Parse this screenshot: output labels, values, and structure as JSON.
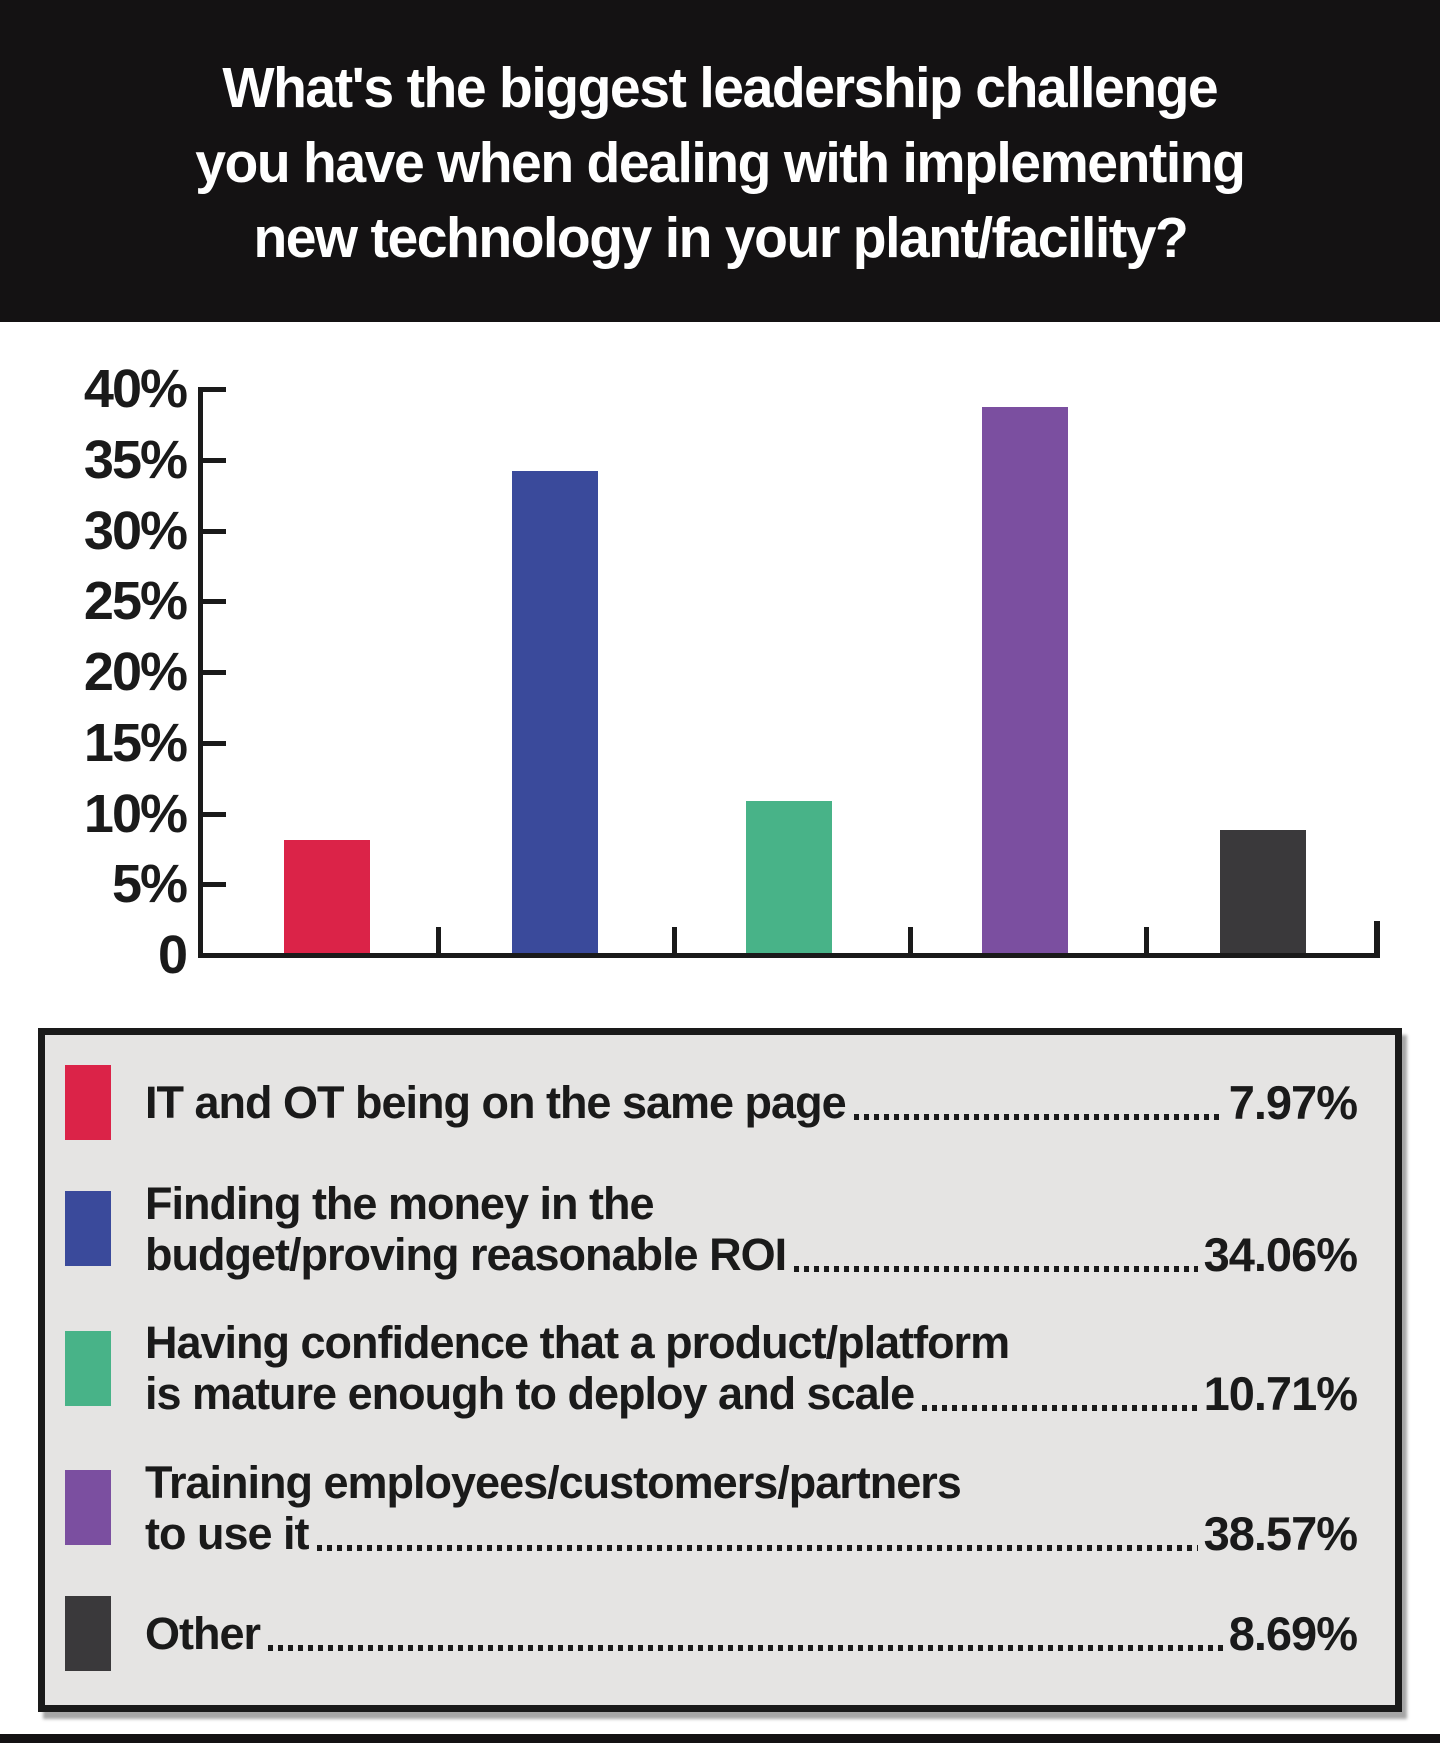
{
  "header": {
    "lines": [
      "What's the biggest leadership challenge",
      "you have when dealing with implementing",
      "new technology in your plant/facility?"
    ]
  },
  "chart_data": {
    "type": "bar",
    "title": "What's the biggest leadership challenge you have when dealing with implementing new technology in your plant/facility?",
    "categories": [
      "IT and OT being on the same page",
      "Finding the money in the budget/proving reasonable ROI",
      "Having confidence that a product/platform is mature enough to deploy and scale",
      "Training employees/customers/partners to use it",
      "Other"
    ],
    "values": [
      7.97,
      34.06,
      10.71,
      38.57,
      8.69
    ],
    "bar_colors": [
      "#db2348",
      "#3a4a9b",
      "#48b388",
      "#7b4fa0",
      "#3a393b"
    ],
    "xlabel": "",
    "ylabel": "",
    "ylim": [
      0,
      40
    ],
    "ytick_values": [
      40,
      35,
      30,
      25,
      20,
      15,
      10,
      5,
      0
    ],
    "ytick_labels": [
      "40%",
      "35%",
      "30%",
      "25%",
      "20%",
      "15%",
      "10%",
      "5%",
      "0"
    ],
    "grid": false,
    "legend_position": "bottom"
  },
  "legend": {
    "items": [
      {
        "color": "#db2348",
        "lines": [
          "IT and OT being on the same page"
        ],
        "value": "7.97%"
      },
      {
        "color": "#3a4a9b",
        "lines": [
          "Finding the money in the",
          "budget/proving reasonable ROI"
        ],
        "value": "34.06%"
      },
      {
        "color": "#48b388",
        "lines": [
          "Having confidence that a product/platform",
          "is mature enough to deploy and scale"
        ],
        "value": "10.71%"
      },
      {
        "color": "#7b4fa0",
        "lines": [
          "Training employees/customers/partners",
          "to use it"
        ],
        "value": "38.57%"
      },
      {
        "color": "#3a393b",
        "lines": [
          "Other"
        ],
        "value": "8.69%"
      }
    ]
  },
  "colors": {
    "banner_bg": "#141213",
    "axis": "#1a1a1a",
    "legend_bg": "#e5e4e3",
    "text": "#1a1a1a"
  }
}
